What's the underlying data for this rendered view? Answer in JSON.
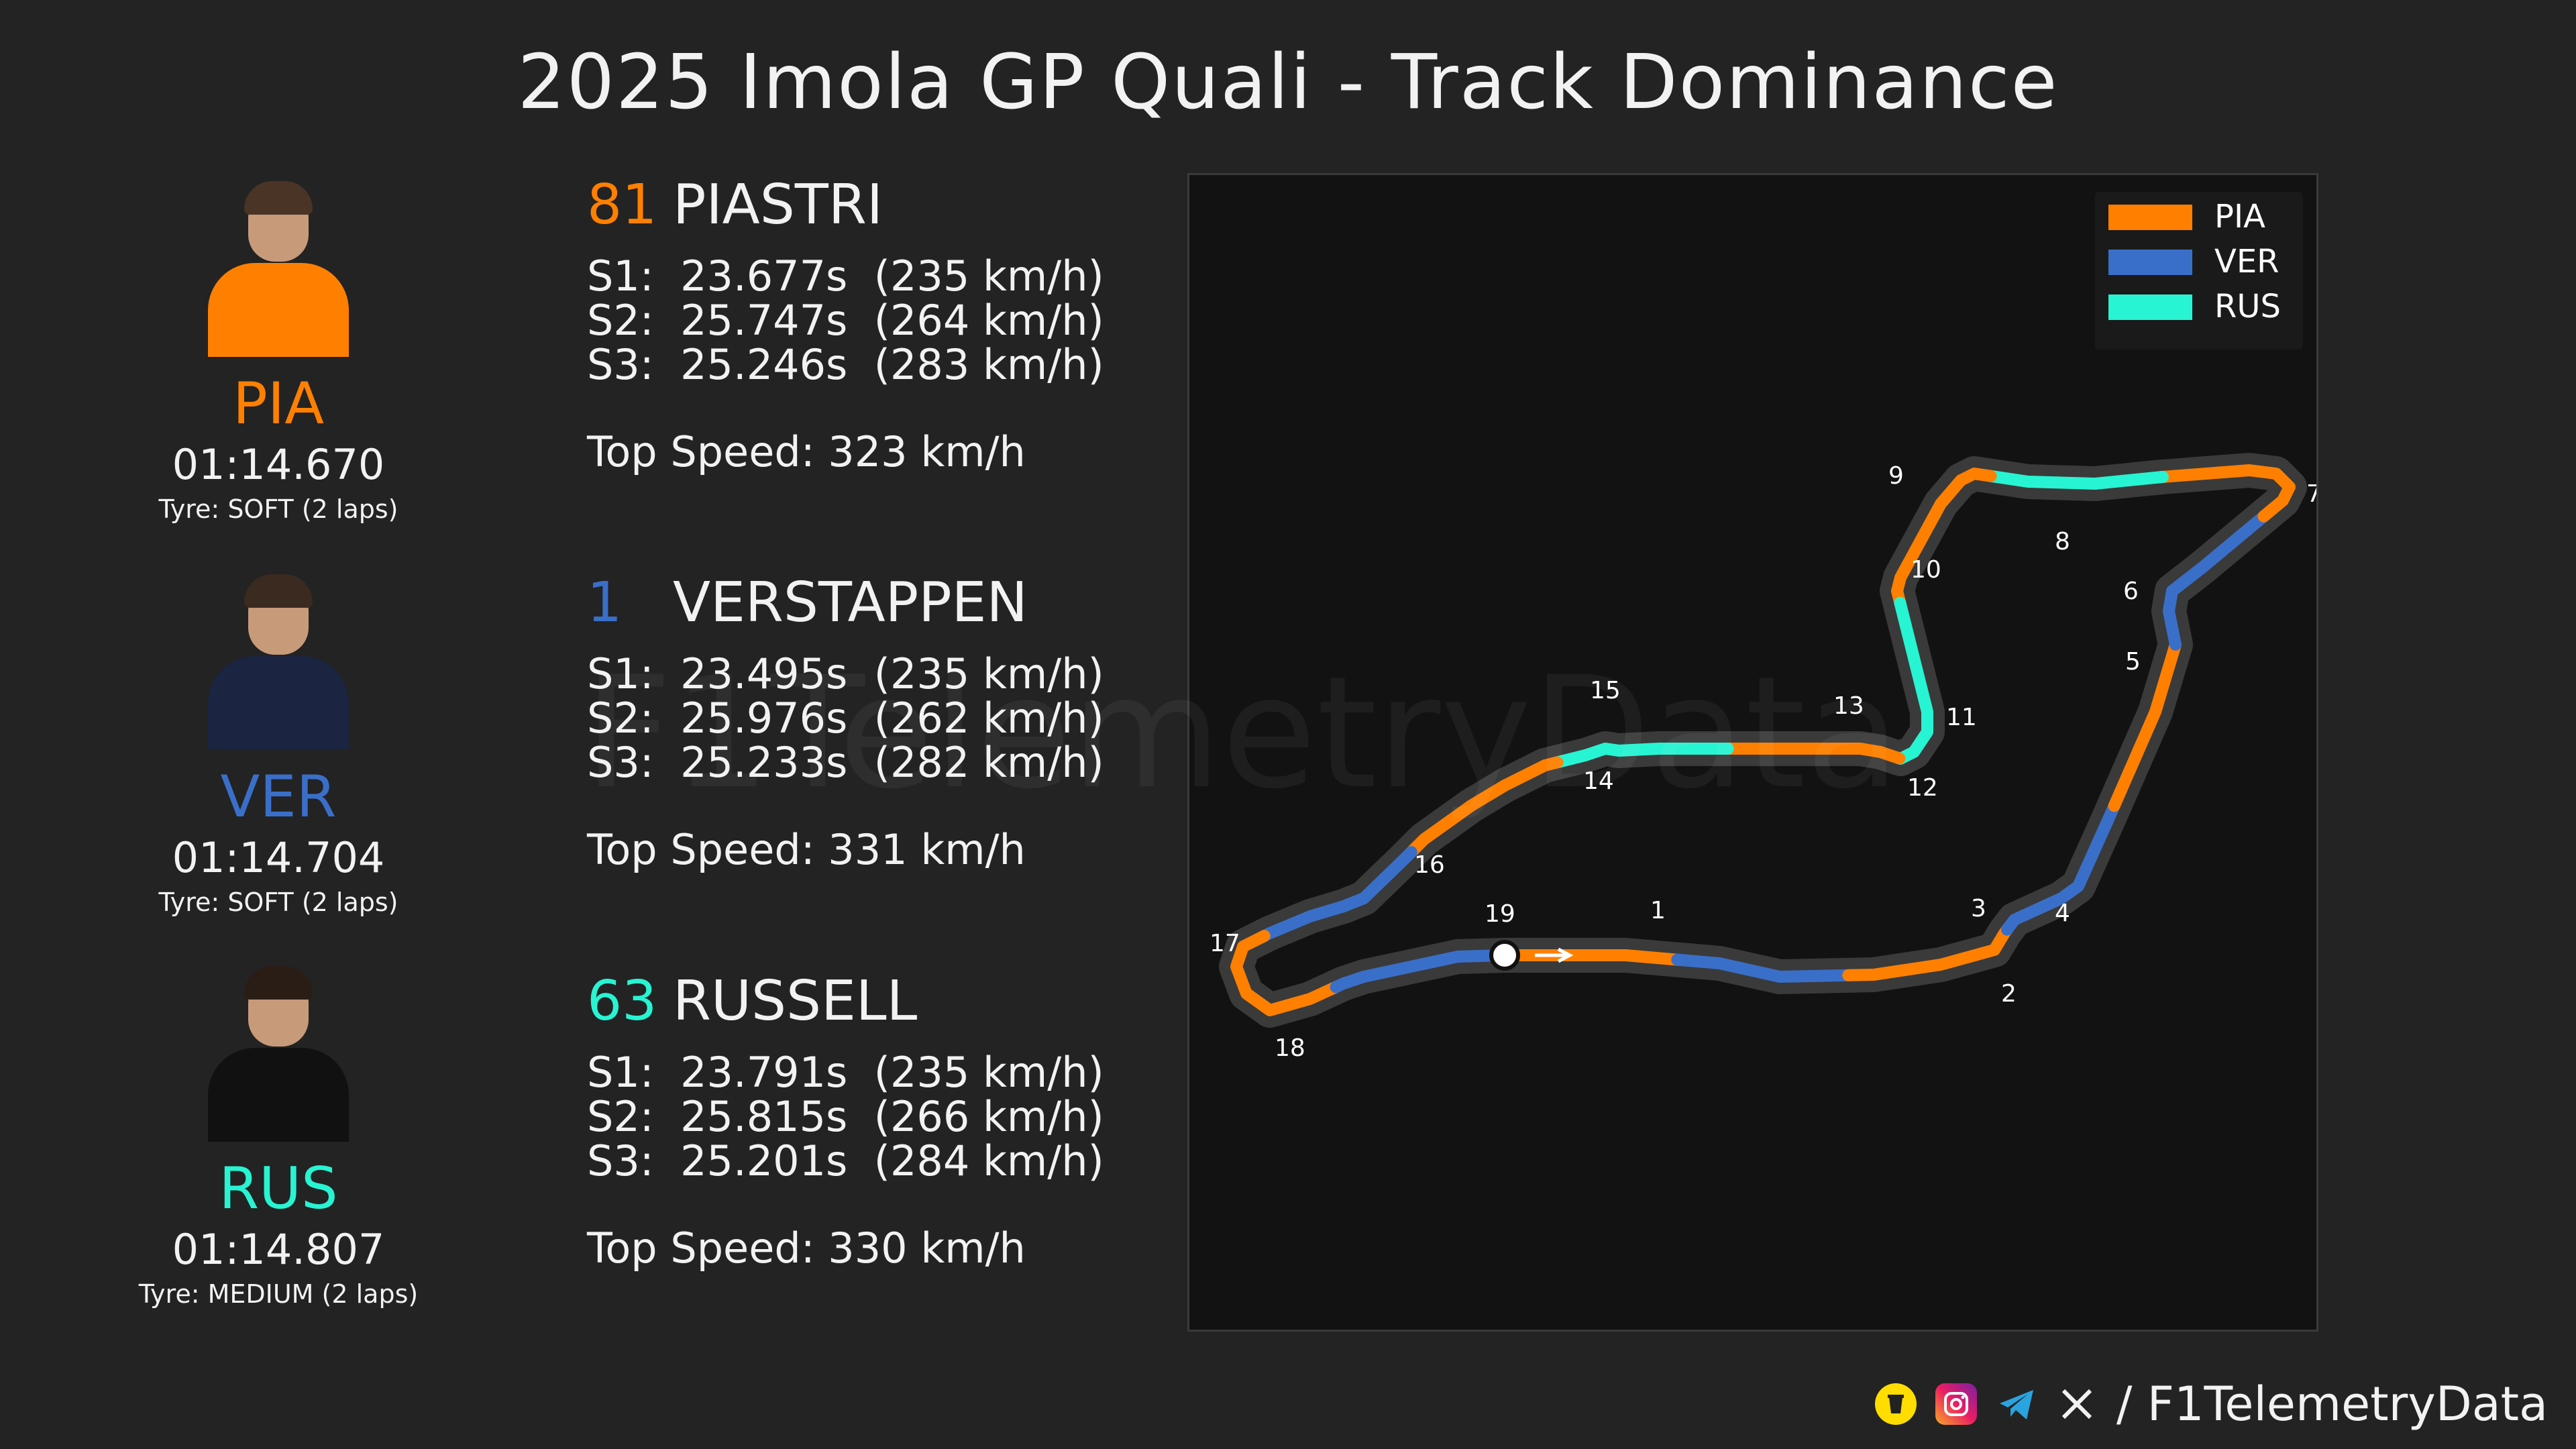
{
  "title": "2025 Imola GP Quali - Track Dominance",
  "colors": {
    "PIA": "#ff8000",
    "VER": "#3a6fc9",
    "RUS": "#27f4d2",
    "background": "#232323",
    "panel": "#121212"
  },
  "drivers": [
    {
      "abbr": "PIA",
      "number": "81",
      "name": "PIASTRI",
      "laptime": "01:14.670",
      "tyre": "Tyre: SOFT (2 laps)",
      "s1": "S1:  23.677s  (235 km/h)",
      "s2": "S2:  25.747s  (264 km/h)",
      "s3": "S3:  25.246s  (283 km/h)",
      "top_speed": "Top Speed: 323 km/h"
    },
    {
      "abbr": "VER",
      "number": "1",
      "name": "VERSTAPPEN",
      "laptime": "01:14.704",
      "tyre": "Tyre: SOFT (2 laps)",
      "s1": "S1:  23.495s  (235 km/h)",
      "s2": "S2:  25.976s  (262 km/h)",
      "s3": "S3:  25.233s  (282 km/h)",
      "top_speed": "Top Speed: 331 km/h"
    },
    {
      "abbr": "RUS",
      "number": "63",
      "name": "RUSSELL",
      "laptime": "01:14.807",
      "tyre": "Tyre: MEDIUM (2 laps)",
      "s1": "S1:  23.791s  (235 km/h)",
      "s2": "S2:  25.815s  (266 km/h)",
      "s3": "S3:  25.201s  (284 km/h)",
      "top_speed": "Top Speed: 330 km/h"
    }
  ],
  "chart_data": {
    "type": "track_map",
    "legend": {
      "placement": "top-right",
      "entries": [
        "PIA",
        "VER",
        "RUS"
      ]
    },
    "corner_labels": [
      "1",
      "2",
      "3",
      "4",
      "5",
      "6",
      "7",
      "8",
      "9",
      "10",
      "11",
      "12",
      "13",
      "14",
      "15",
      "16",
      "17",
      "18",
      "19"
    ],
    "mini_sector_fastest_sequence": [
      "PIA",
      "VER",
      "PIA",
      "VER",
      "PIA",
      "VER",
      "PIA",
      "RUS",
      "PIA",
      "RUS",
      "PIA",
      "RUS",
      "PIA",
      "VER",
      "PIA",
      "VER"
    ]
  },
  "watermark": "F1TelemetryData",
  "footer": {
    "handle": "/ F1TelemetryData",
    "icons": [
      "coffee-icon",
      "instagram-icon",
      "telegram-icon",
      "x-icon"
    ]
  }
}
